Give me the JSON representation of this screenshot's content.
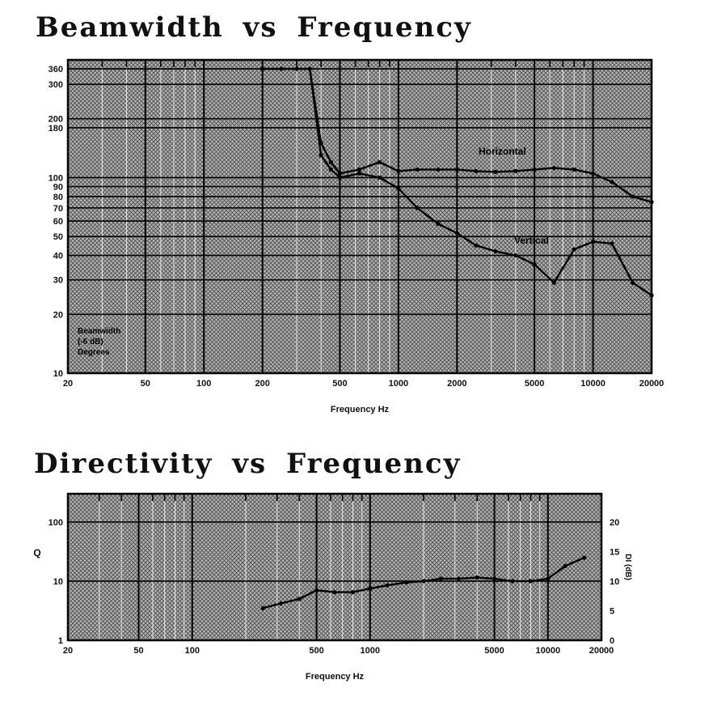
{
  "chart_data": [
    {
      "type": "line",
      "title": "Beamwidth vs Frequency",
      "xlabel": "Frequency Hz",
      "ylabel": "",
      "xscale": "log",
      "yscale": "log",
      "xlim": [
        20,
        20000
      ],
      "ylim": [
        10,
        400
      ],
      "grid": true,
      "background": "crosshatch",
      "x_tick_values": [
        20,
        50,
        100,
        200,
        500,
        1000,
        2000,
        5000,
        10000,
        20000
      ],
      "x_tick_labels": [
        "20",
        "50",
        "100",
        "200",
        "500",
        "1000",
        "2000",
        "5000",
        "10000",
        "20000"
      ],
      "y_tick_values": [
        10,
        20,
        30,
        40,
        50,
        60,
        70,
        80,
        90,
        100,
        180,
        200,
        300,
        360
      ],
      "y_tick_labels": [
        "10",
        "20",
        "30",
        "40",
        "50",
        "60",
        "70",
        "80",
        "90",
        "100",
        "180",
        "200",
        "300",
        "360"
      ],
      "axis_note": [
        "Beamwidth",
        "(-6 dB)",
        "Degrees"
      ],
      "series": [
        {
          "name": "Horizontal",
          "x": [
            200,
            250,
            300,
            350,
            400,
            450,
            500,
            630,
            800,
            1000,
            1250,
            1600,
            2000,
            2500,
            3150,
            4000,
            5000,
            6300,
            8000,
            10000,
            12500,
            16000,
            20000
          ],
          "y": [
            360,
            360,
            360,
            360,
            150,
            120,
            105,
            110,
            120,
            108,
            110,
            110,
            110,
            108,
            107,
            108,
            110,
            112,
            110,
            105,
            95,
            80,
            75
          ]
        },
        {
          "name": "Vertical",
          "x": [
            200,
            250,
            300,
            350,
            400,
            450,
            500,
            630,
            800,
            1000,
            1250,
            1600,
            2000,
            2500,
            3150,
            4000,
            5000,
            6300,
            8000,
            10000,
            12500,
            16000,
            20000
          ],
          "y": [
            360,
            360,
            360,
            360,
            130,
            110,
            100,
            105,
            100,
            88,
            70,
            58,
            52,
            45,
            42,
            40,
            36,
            29,
            43,
            47,
            46,
            29,
            25
          ]
        }
      ]
    },
    {
      "type": "line",
      "title": "Directivity vs Frequency",
      "xlabel": "Frequency Hz",
      "ylabel": "Q",
      "xscale": "log",
      "yscale": "log",
      "xlim": [
        20,
        20000
      ],
      "ylim": [
        1,
        300
      ],
      "grid": true,
      "background": "crosshatch",
      "x_tick_values": [
        20,
        50,
        100,
        500,
        1000,
        5000,
        10000,
        20000
      ],
      "x_tick_labels": [
        "20",
        "50",
        "100",
        "500",
        "1000",
        "5000",
        "10000",
        "20000"
      ],
      "y_tick_values": [
        1,
        10,
        100
      ],
      "y_tick_labels": [
        "1",
        "10",
        "100"
      ],
      "right_axis_label": "DI (dB)",
      "right_tick_values": [
        0,
        5,
        10,
        15,
        20
      ],
      "right_tick_labels": [
        "0",
        "5",
        "10",
        "15",
        "20"
      ],
      "series": [
        {
          "name": "Q",
          "x": [
            250,
            315,
            400,
            500,
            630,
            800,
            1000,
            1250,
            1600,
            2000,
            2500,
            3150,
            4000,
            5000,
            6300,
            8000,
            10000,
            12500,
            16000
          ],
          "y": [
            3.5,
            4.2,
            5.0,
            7.0,
            6.5,
            6.5,
            7.5,
            8.5,
            9.5,
            10,
            11,
            11,
            11.5,
            11,
            10,
            10,
            11,
            18,
            25
          ]
        }
      ]
    }
  ]
}
